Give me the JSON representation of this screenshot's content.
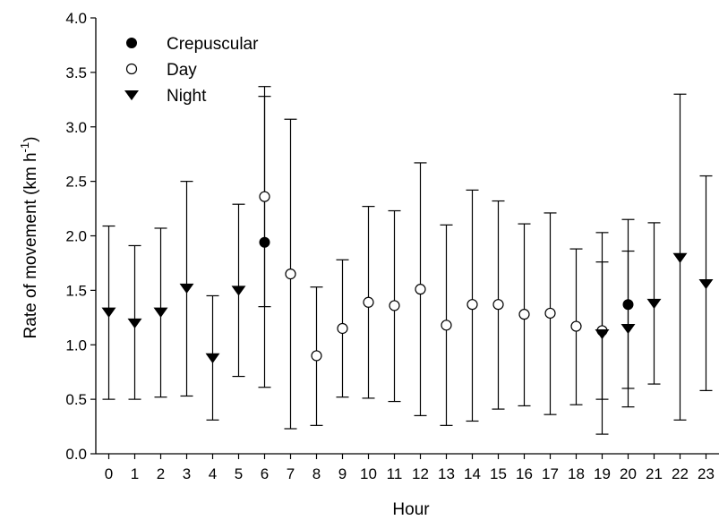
{
  "chart_data": {
    "type": "scatter",
    "title": "",
    "xlabel": "Hour",
    "ylabel_main": "Rate of movement (km h",
    "ylabel_sup": "-1",
    "ylabel_close": ")",
    "xlim": [
      -0.5,
      23.5
    ],
    "ylim": [
      0,
      4
    ],
    "xticks": [
      "0",
      "1",
      "2",
      "3",
      "4",
      "5",
      "6",
      "7",
      "8",
      "9",
      "10",
      "11",
      "12",
      "13",
      "14",
      "15",
      "16",
      "17",
      "18",
      "19",
      "20",
      "21",
      "22",
      "23"
    ],
    "yticks": [
      "0.0",
      "0.5",
      "1.0",
      "1.5",
      "2.0",
      "2.5",
      "3.0",
      "3.5",
      "4.0"
    ],
    "grid": false,
    "legend_position": "top-left",
    "colors": {
      "ink": "#000000",
      "background": "#ffffff"
    },
    "series": [
      {
        "name": "Crepuscular",
        "marker": "filled-circle",
        "points": [
          {
            "x": 6,
            "y": 1.94,
            "lo": 0.61,
            "hi": 3.28
          },
          {
            "x": 20,
            "y": 1.37,
            "lo": 0.6,
            "hi": 2.15
          }
        ]
      },
      {
        "name": "Day",
        "marker": "open-circle",
        "points": [
          {
            "x": 6,
            "y": 2.36,
            "lo": 1.35,
            "hi": 3.37
          },
          {
            "x": 7,
            "y": 1.65,
            "lo": 0.23,
            "hi": 3.07
          },
          {
            "x": 8,
            "y": 0.9,
            "lo": 0.26,
            "hi": 1.53
          },
          {
            "x": 9,
            "y": 1.15,
            "lo": 0.52,
            "hi": 1.78
          },
          {
            "x": 10,
            "y": 1.39,
            "lo": 0.51,
            "hi": 2.27
          },
          {
            "x": 11,
            "y": 1.36,
            "lo": 0.48,
            "hi": 2.23
          },
          {
            "x": 12,
            "y": 1.51,
            "lo": 0.35,
            "hi": 2.67
          },
          {
            "x": 13,
            "y": 1.18,
            "lo": 0.26,
            "hi": 2.1
          },
          {
            "x": 14,
            "y": 1.37,
            "lo": 0.3,
            "hi": 2.42
          },
          {
            "x": 15,
            "y": 1.37,
            "lo": 0.41,
            "hi": 2.32
          },
          {
            "x": 16,
            "y": 1.28,
            "lo": 0.44,
            "hi": 2.11
          },
          {
            "x": 17,
            "y": 1.29,
            "lo": 0.36,
            "hi": 2.21
          },
          {
            "x": 18,
            "y": 1.17,
            "lo": 0.45,
            "hi": 1.88
          },
          {
            "x": 19,
            "y": 1.13,
            "lo": 0.5,
            "hi": 1.76
          }
        ]
      },
      {
        "name": "Night",
        "marker": "filled-triangle-down",
        "points": [
          {
            "x": 0,
            "y": 1.3,
            "lo": 0.5,
            "hi": 2.09
          },
          {
            "x": 1,
            "y": 1.2,
            "lo": 0.5,
            "hi": 1.91
          },
          {
            "x": 2,
            "y": 1.3,
            "lo": 0.52,
            "hi": 2.07
          },
          {
            "x": 3,
            "y": 1.52,
            "lo": 0.53,
            "hi": 2.5
          },
          {
            "x": 4,
            "y": 0.88,
            "lo": 0.31,
            "hi": 1.45
          },
          {
            "x": 5,
            "y": 1.5,
            "lo": 0.71,
            "hi": 2.29
          },
          {
            "x": 19,
            "y": 1.1,
            "lo": 0.18,
            "hi": 2.03
          },
          {
            "x": 20,
            "y": 1.15,
            "lo": 0.43,
            "hi": 1.86
          },
          {
            "x": 21,
            "y": 1.38,
            "lo": 0.64,
            "hi": 2.12
          },
          {
            "x": 22,
            "y": 1.8,
            "lo": 0.31,
            "hi": 3.3
          },
          {
            "x": 23,
            "y": 1.56,
            "lo": 0.58,
            "hi": 2.55
          }
        ]
      }
    ]
  }
}
